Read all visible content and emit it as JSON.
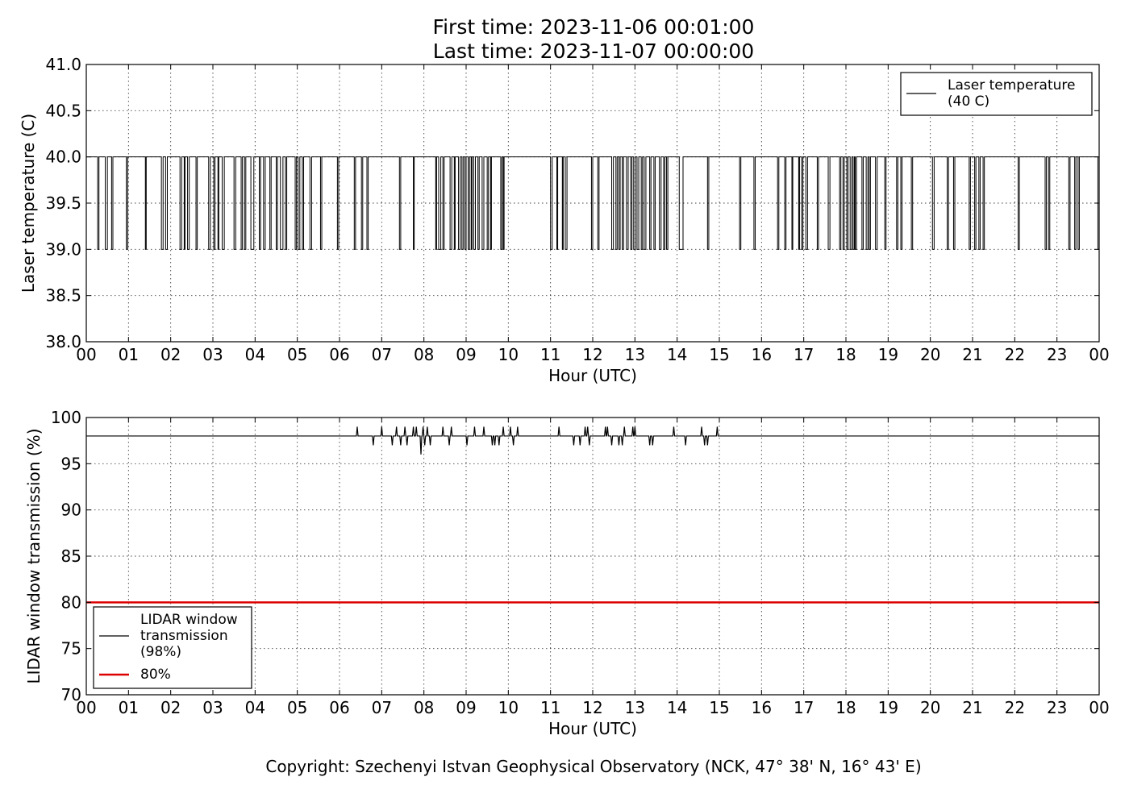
{
  "header": {
    "line1": "First time: 2023-11-06 00:01:00",
    "line2": "Last time: 2023-11-07 00:00:00"
  },
  "footer": {
    "copyright": "Copyright: Szechenyi Istvan Geophysical Observatory (NCK, 47° 38' N, 16° 43' E)"
  },
  "chart_data": [
    {
      "type": "line",
      "title": "",
      "xlabel": "Hour (UTC)",
      "ylabel": "Laser temperature (C)",
      "xlim": [
        0,
        24
      ],
      "ylim": [
        38.0,
        41.0
      ],
      "xticks": [
        "00",
        "01",
        "02",
        "03",
        "04",
        "05",
        "06",
        "07",
        "08",
        "09",
        "10",
        "11",
        "12",
        "13",
        "14",
        "15",
        "16",
        "17",
        "18",
        "19",
        "20",
        "21",
        "22",
        "23",
        "00"
      ],
      "yticks": [
        "38.0",
        "38.5",
        "39.0",
        "39.5",
        "40.0",
        "40.5",
        "41.0"
      ],
      "grid": true,
      "legend_position": "top-right",
      "series": [
        {
          "name": "Laser temperature\n(40 C)",
          "color": "#000000",
          "baseline": 40,
          "dip_value": 39,
          "dips": [
            [
              0.27,
              0.3
            ],
            [
              0.45,
              0.5
            ],
            [
              0.6,
              0.63
            ],
            [
              0.95,
              0.98
            ],
            [
              1.4,
              1.42
            ],
            [
              1.78,
              1.82
            ],
            [
              1.88,
              1.92
            ],
            [
              2.22,
              2.26
            ],
            [
              2.32,
              2.34
            ],
            [
              2.4,
              2.44
            ],
            [
              2.6,
              2.63
            ],
            [
              2.9,
              2.94
            ],
            [
              3.02,
              3.05
            ],
            [
              3.12,
              3.14
            ],
            [
              3.22,
              3.27
            ],
            [
              3.5,
              3.54
            ],
            [
              3.67,
              3.7
            ],
            [
              3.75,
              3.78
            ],
            [
              3.9,
              3.97
            ],
            [
              4.1,
              4.13
            ],
            [
              4.2,
              4.24
            ],
            [
              4.35,
              4.38
            ],
            [
              4.5,
              4.53
            ],
            [
              4.6,
              4.66
            ],
            [
              4.72,
              4.75
            ],
            [
              4.95,
              4.98
            ],
            [
              5.02,
              5.06
            ],
            [
              5.12,
              5.15
            ],
            [
              5.3,
              5.34
            ],
            [
              5.55,
              5.58
            ],
            [
              5.95,
              5.98
            ],
            [
              6.35,
              6.38
            ],
            [
              6.52,
              6.55
            ],
            [
              6.65,
              6.68
            ],
            [
              7.42,
              7.45
            ],
            [
              7.75,
              7.77
            ],
            [
              8.28,
              8.3
            ],
            [
              8.35,
              8.4
            ],
            [
              8.45,
              8.48
            ],
            [
              8.62,
              8.66
            ],
            [
              8.72,
              8.74
            ],
            [
              8.82,
              8.86
            ],
            [
              8.9,
              8.93
            ],
            [
              8.97,
              9.0
            ],
            [
              9.05,
              9.08
            ],
            [
              9.12,
              9.14
            ],
            [
              9.18,
              9.22
            ],
            [
              9.28,
              9.31
            ],
            [
              9.38,
              9.42
            ],
            [
              9.5,
              9.53
            ],
            [
              9.58,
              9.6
            ],
            [
              9.82,
              9.85
            ],
            [
              9.88,
              9.9
            ],
            [
              11.0,
              11.04
            ],
            [
              11.15,
              11.17
            ],
            [
              11.28,
              11.3
            ],
            [
              11.35,
              11.39
            ],
            [
              11.97,
              12.0
            ],
            [
              12.12,
              12.15
            ],
            [
              12.45,
              12.49
            ],
            [
              12.55,
              12.58
            ],
            [
              12.62,
              12.65
            ],
            [
              12.7,
              12.73
            ],
            [
              12.8,
              12.84
            ],
            [
              12.9,
              12.93
            ],
            [
              12.97,
              13.01
            ],
            [
              13.05,
              13.09
            ],
            [
              13.15,
              13.18
            ],
            [
              13.22,
              13.26
            ],
            [
              13.35,
              13.38
            ],
            [
              13.45,
              13.48
            ],
            [
              13.58,
              13.62
            ],
            [
              13.68,
              13.71
            ],
            [
              13.75,
              13.78
            ],
            [
              14.05,
              14.14
            ],
            [
              14.72,
              14.75
            ],
            [
              15.48,
              15.51
            ],
            [
              15.82,
              15.85
            ],
            [
              16.38,
              16.41
            ],
            [
              16.55,
              16.58
            ],
            [
              16.72,
              16.74
            ],
            [
              16.88,
              16.9
            ],
            [
              16.95,
              16.98
            ],
            [
              17.05,
              17.09
            ],
            [
              17.32,
              17.35
            ],
            [
              17.58,
              17.62
            ],
            [
              17.85,
              17.88
            ],
            [
              17.93,
              17.96
            ],
            [
              18.02,
              18.05
            ],
            [
              18.1,
              18.14
            ],
            [
              18.17,
              18.2
            ],
            [
              18.22,
              18.25
            ],
            [
              18.38,
              18.41
            ],
            [
              18.48,
              18.52
            ],
            [
              18.55,
              18.58
            ],
            [
              18.7,
              18.74
            ],
            [
              18.92,
              18.95
            ],
            [
              19.2,
              19.23
            ],
            [
              19.3,
              19.33
            ],
            [
              19.55,
              19.58
            ],
            [
              20.05,
              20.09
            ],
            [
              20.4,
              20.43
            ],
            [
              20.55,
              20.58
            ],
            [
              20.92,
              20.95
            ],
            [
              21.05,
              21.08
            ],
            [
              21.15,
              21.18
            ],
            [
              21.25,
              21.28
            ],
            [
              22.08,
              22.11
            ],
            [
              22.72,
              22.75
            ],
            [
              22.8,
              22.83
            ],
            [
              23.28,
              23.31
            ],
            [
              23.42,
              23.45
            ],
            [
              23.5,
              23.53
            ],
            [
              23.97,
              24.0
            ]
          ]
        }
      ]
    },
    {
      "type": "line",
      "title": "",
      "xlabel": "Hour (UTC)",
      "ylabel": "LIDAR window transmission (%)",
      "xlim": [
        0,
        24
      ],
      "ylim": [
        70,
        100
      ],
      "xticks": [
        "00",
        "01",
        "02",
        "03",
        "04",
        "05",
        "06",
        "07",
        "08",
        "09",
        "10",
        "11",
        "12",
        "13",
        "14",
        "15",
        "16",
        "17",
        "18",
        "19",
        "20",
        "21",
        "22",
        "23",
        "00"
      ],
      "yticks": [
        "70",
        "75",
        "80",
        "85",
        "90",
        "95",
        "100"
      ],
      "grid": true,
      "legend_position": "lower-left",
      "series": [
        {
          "name": "LIDAR window\ntransmission\n(98%)",
          "color": "#000000",
          "baseline": 98,
          "spikes": [
            [
              6.42,
              99
            ],
            [
              6.8,
              97
            ],
            [
              7.0,
              99
            ],
            [
              7.25,
              97
            ],
            [
              7.35,
              99
            ],
            [
              7.45,
              97
            ],
            [
              7.55,
              99
            ],
            [
              7.6,
              97
            ],
            [
              7.75,
              99
            ],
            [
              7.82,
              99
            ],
            [
              7.88,
              98
            ],
            [
              7.93,
              96
            ],
            [
              7.98,
              99
            ],
            [
              8.02,
              97
            ],
            [
              8.08,
              99
            ],
            [
              8.15,
              97
            ],
            [
              8.45,
              99
            ],
            [
              8.6,
              97
            ],
            [
              8.65,
              99
            ],
            [
              9.02,
              97
            ],
            [
              9.2,
              99
            ],
            [
              9.42,
              99
            ],
            [
              9.62,
              97
            ],
            [
              9.68,
              97
            ],
            [
              9.78,
              97
            ],
            [
              9.88,
              99
            ],
            [
              9.96,
              98
            ],
            [
              10.05,
              99
            ],
            [
              10.12,
              97
            ],
            [
              10.22,
              99
            ],
            [
              11.2,
              99
            ],
            [
              11.55,
              97
            ],
            [
              11.7,
              97
            ],
            [
              11.82,
              99
            ],
            [
              11.88,
              99
            ],
            [
              11.92,
              97
            ],
            [
              12.3,
              99
            ],
            [
              12.35,
              99
            ],
            [
              12.45,
              97
            ],
            [
              12.62,
              97
            ],
            [
              12.7,
              97
            ],
            [
              12.75,
              99
            ],
            [
              12.95,
              99
            ],
            [
              13.0,
              99
            ],
            [
              13.05,
              98
            ],
            [
              13.35,
              97
            ],
            [
              13.42,
              97
            ],
            [
              13.92,
              99
            ],
            [
              14.2,
              97
            ],
            [
              14.58,
              99
            ],
            [
              14.65,
              97
            ],
            [
              14.72,
              97
            ],
            [
              14.95,
              99
            ]
          ]
        },
        {
          "name": "80%",
          "color": "#dd0000",
          "value": 80
        }
      ]
    }
  ]
}
